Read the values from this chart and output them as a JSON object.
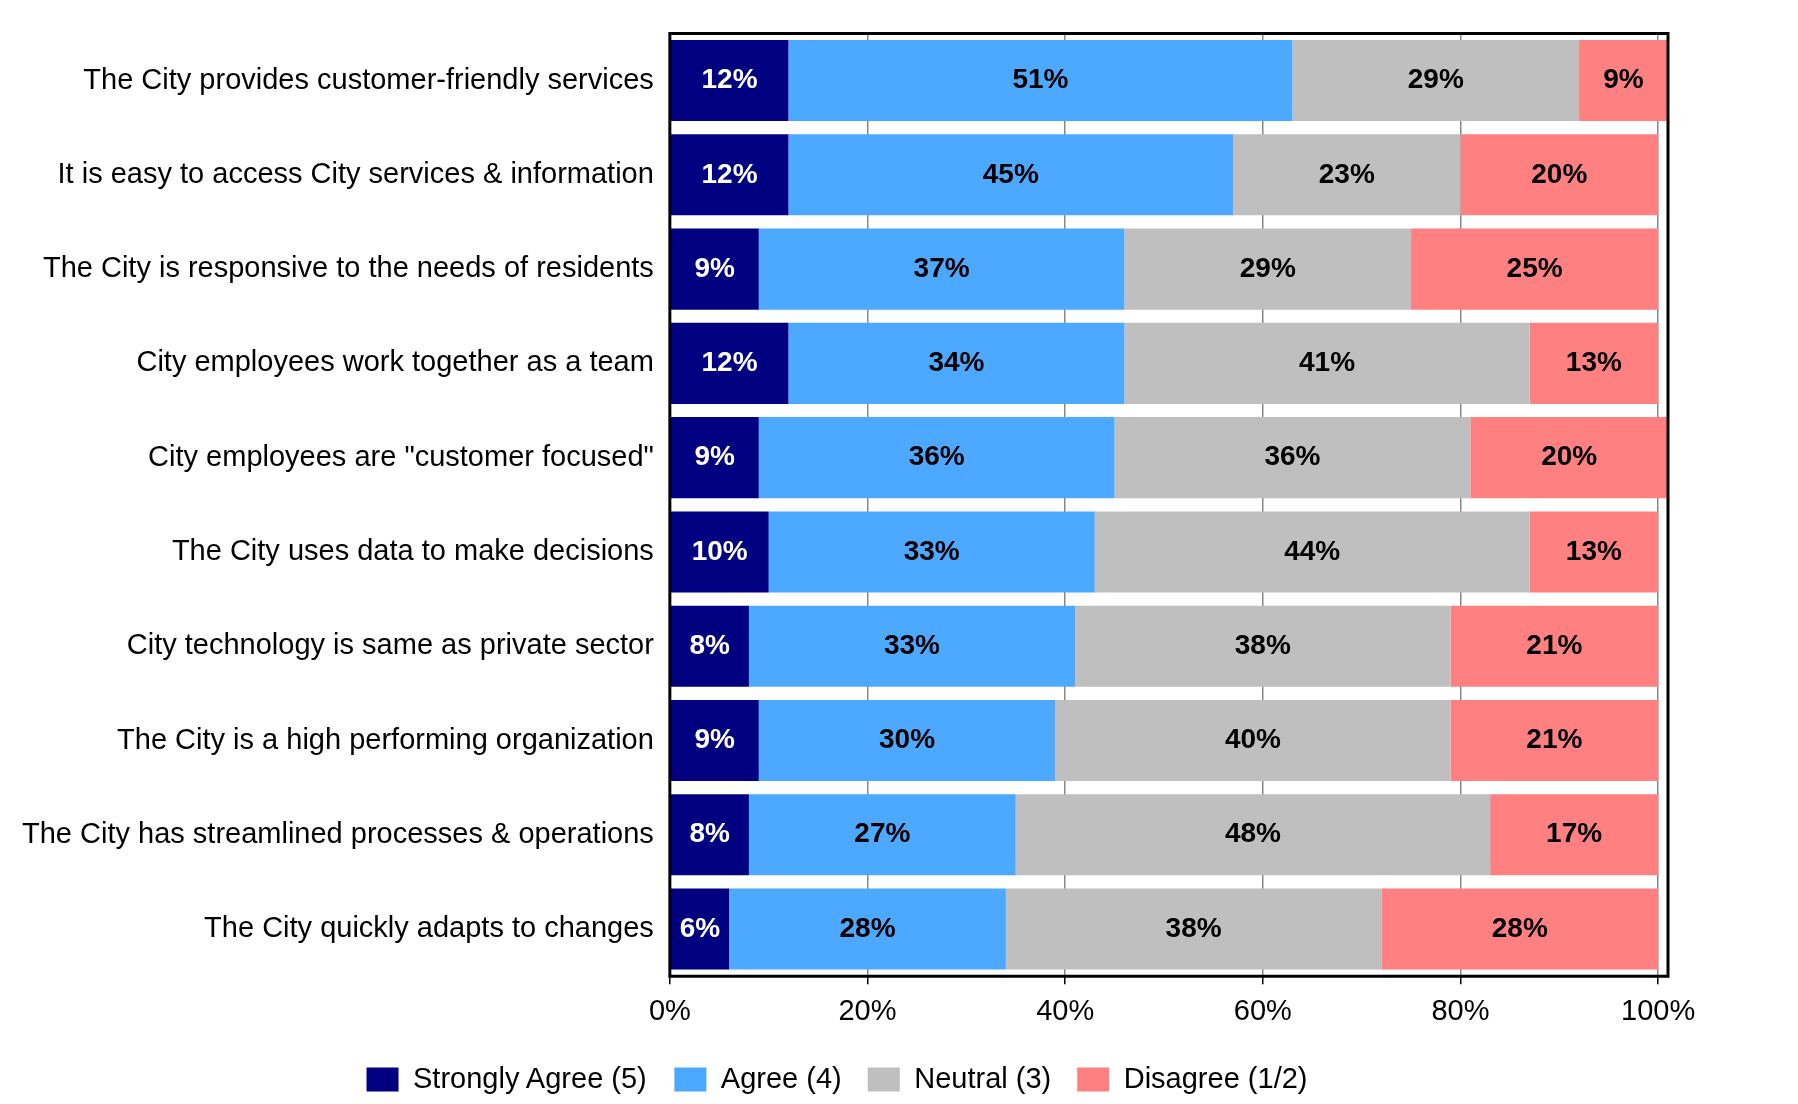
{
  "chart_data": {
    "type": "bar",
    "orientation": "horizontal",
    "stacked": true,
    "categories": [
      "The City provides customer-friendly services",
      "It is easy to access City services & information",
      "The City is responsive to the needs of residents",
      "City employees work together as a team",
      "City employees are \"customer focused\"",
      "The City uses data to make decisions",
      "City technology is same as private sector",
      "The City is a high performing organization",
      "The City has streamlined processes & operations",
      "The City quickly adapts to changes"
    ],
    "series": [
      {
        "name": "Strongly Agree (5)",
        "color": "#000080",
        "values": [
          12,
          12,
          9,
          12,
          9,
          10,
          8,
          9,
          8,
          6
        ],
        "value_labels": [
          "12%",
          "12%",
          "9%",
          "12%",
          "9%",
          "10%",
          "8%",
          "9%",
          "8%",
          "6%"
        ]
      },
      {
        "name": "Agree (4)",
        "color": "#4da9ff",
        "values": [
          51,
          45,
          37,
          34,
          36,
          33,
          33,
          30,
          27,
          28
        ],
        "value_labels": [
          "51%",
          "45%",
          "37%",
          "34%",
          "36%",
          "33%",
          "33%",
          "30%",
          "27%",
          "28%"
        ]
      },
      {
        "name": "Neutral (3)",
        "color": "#bfbfbf",
        "values": [
          29,
          23,
          29,
          41,
          36,
          44,
          38,
          40,
          48,
          38
        ],
        "value_labels": [
          "29%",
          "23%",
          "29%",
          "41%",
          "36%",
          "44%",
          "38%",
          "40%",
          "48%",
          "38%"
        ]
      },
      {
        "name": "Disagree (1/2)",
        "color": "#ff8080",
        "values": [
          9,
          20,
          25,
          13,
          20,
          13,
          21,
          21,
          17,
          28
        ],
        "value_labels": [
          "9%",
          "20%",
          "25%",
          "13%",
          "20%",
          "13%",
          "21%",
          "21%",
          "17%",
          "28%"
        ]
      }
    ],
    "xlim": [
      0,
      101
    ],
    "xticks": [
      {
        "value": 0,
        "label": "0%"
      },
      {
        "value": 20,
        "label": "20%"
      },
      {
        "value": 40,
        "label": "40%"
      },
      {
        "value": 60,
        "label": "60%"
      },
      {
        "value": 80,
        "label": "80%"
      },
      {
        "value": 100,
        "label": "100%"
      }
    ],
    "grid": "x",
    "legend": "bottom"
  }
}
